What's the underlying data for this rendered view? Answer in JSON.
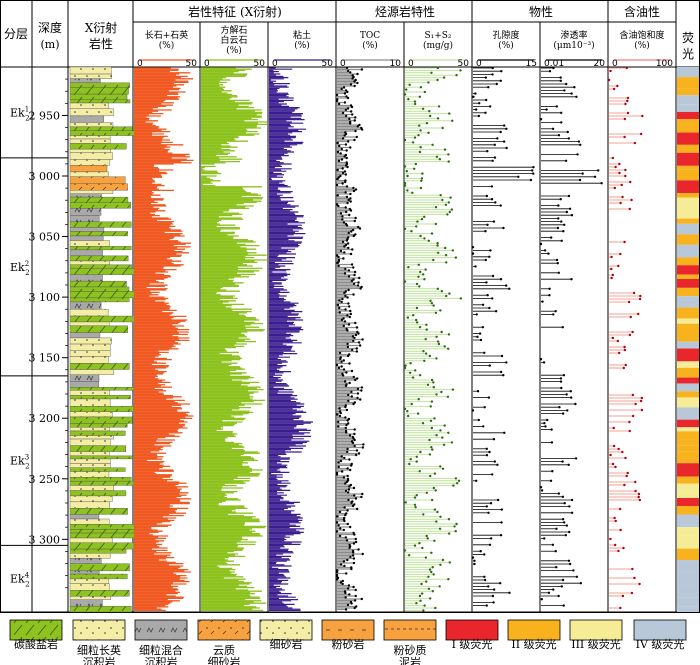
{
  "headers": {
    "stratum": "分层",
    "depth": "深度",
    "depth_unit": "(m)",
    "xrd_lith_1": "X衍射",
    "xrd_lith_2": "岩性",
    "group_lith": "岩性特征 (X衍射)",
    "group_source": "烃源岩特性",
    "group_phys": "物性",
    "group_oil": "含油性",
    "fluor": "荧光"
  },
  "tracks": [
    {
      "key": "felsic",
      "title": [
        "长石+石英",
        "(%)"
      ],
      "min": "0",
      "max": "50",
      "color": "#F05A22"
    },
    {
      "key": "carbonate",
      "title": [
        "方解石",
        "白云石",
        "(%)"
      ],
      "min": "0",
      "max": "50",
      "color": "#8DC21F"
    },
    {
      "key": "clay",
      "title": [
        "粘土",
        "(%)"
      ],
      "min": "0",
      "max": "50",
      "color": "#3B1D8F"
    },
    {
      "key": "toc",
      "title": [
        "TOC",
        "(%)"
      ],
      "min": "0",
      "max": "10",
      "color": "#8C8C8C"
    },
    {
      "key": "s1s2",
      "title": [
        "S₁+S₂",
        "(mg/g)"
      ],
      "min": "0",
      "max": "50",
      "color": "#BFE29A"
    },
    {
      "key": "porosity",
      "title": [
        "孔隙度",
        "(%)"
      ],
      "min": "0",
      "max": "15",
      "color": "#000000"
    },
    {
      "key": "perm",
      "title": [
        "渗透率",
        "(μm10⁻³)"
      ],
      "min": "0.01",
      "max": "20",
      "color": "#000000"
    },
    {
      "key": "oilsat",
      "title": [
        "含油饱和度",
        "(%)"
      ],
      "min": "0",
      "max": "100",
      "color": "#F08070"
    }
  ],
  "depth_ticks": [
    "2 950",
    "3 000",
    "3 050",
    "3 100",
    "3 150",
    "3 200",
    "3 250",
    "3 300"
  ],
  "depth_values": [
    2950,
    3000,
    3050,
    3100,
    3150,
    3200,
    3250,
    3300
  ],
  "strata": [
    {
      "label": "Ek",
      "sup": "1",
      "sub": "2",
      "top": 2910,
      "bottom": 2985
    },
    {
      "label": "Ek",
      "sup": "2",
      "sub": "2",
      "top": 2985,
      "bottom": 3165
    },
    {
      "label": "Ek",
      "sup": "3",
      "sub": "2",
      "top": 3165,
      "bottom": 3305
    },
    {
      "label": "Ek",
      "sup": "4",
      "sub": "2",
      "top": 3305,
      "bottom": 3360
    }
  ],
  "legend": [
    {
      "label": [
        "碳酸盐岩"
      ],
      "fill": "#8DC21F",
      "pattern": "slash"
    },
    {
      "label": [
        "细粒长英",
        "沉积岩"
      ],
      "fill": "#F3EDA6",
      "pattern": "dots"
    },
    {
      "label": [
        "细粒混合",
        "沉积岩"
      ],
      "fill": "#A9A9A9",
      "pattern": "m"
    },
    {
      "label": [
        "云质",
        "细砂岩"
      ],
      "fill": "#F7A23F",
      "pattern": "dotslash"
    },
    {
      "label": [
        "细砂岩"
      ],
      "fill": "#F7A23F",
      "pattern": "dots"
    },
    {
      "label": [
        "粉砂岩"
      ],
      "fill": "#F7A23F",
      "pattern": "dash"
    },
    {
      "label": [
        "粉砂质",
        "泥岩"
      ],
      "fill": "#F7A23F",
      "pattern": "dashdash"
    },
    {
      "label": [
        "I 级荧光"
      ],
      "fill": "#E8262C",
      "pattern": "none"
    },
    {
      "label": [
        "II 级荧光"
      ],
      "fill": "#F7B21E",
      "pattern": "none"
    },
    {
      "label": [
        "III 级荧光"
      ],
      "fill": "#F6EC96",
      "pattern": "none"
    },
    {
      "label": [
        "IV 级荧光"
      ],
      "fill": "#B8C8D8",
      "pattern": "none"
    }
  ]
}
